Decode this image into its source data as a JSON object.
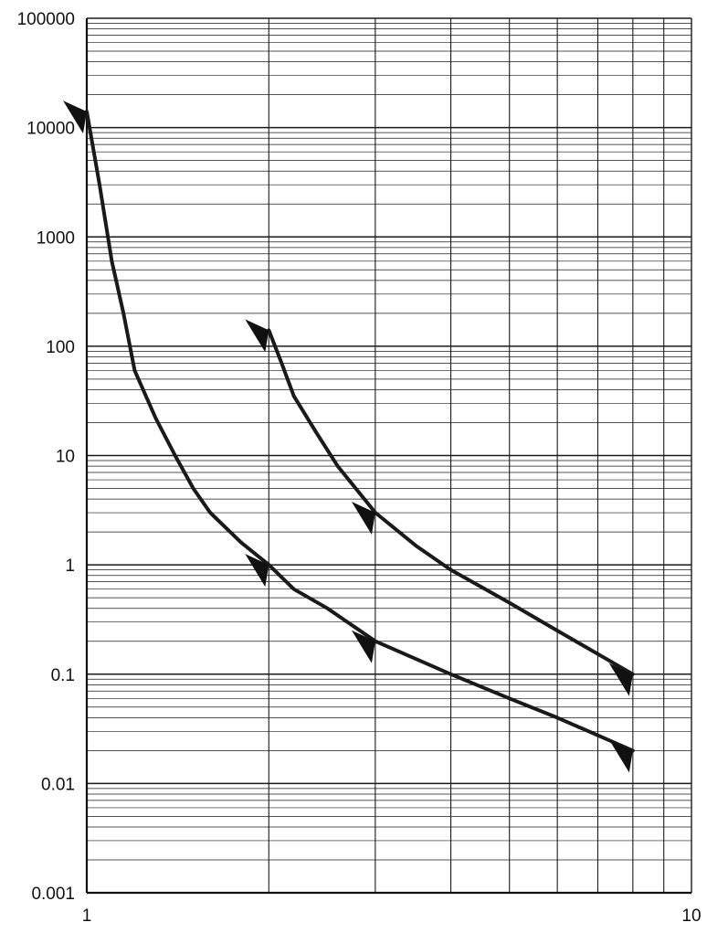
{
  "chart_data": {
    "type": "line",
    "title": "",
    "xlabel": "",
    "ylabel": "",
    "x_scale": "log",
    "y_scale": "log",
    "xlim": [
      1,
      10
    ],
    "ylim": [
      0.001,
      100000
    ],
    "grid": true,
    "x_tick_labels": [
      {
        "value": 1,
        "label": "1"
      },
      {
        "value": 10,
        "label": "10"
      }
    ],
    "y_tick_labels": [
      {
        "value": 100000,
        "label": "100000"
      },
      {
        "value": 10000,
        "label": "10000"
      },
      {
        "value": 1000,
        "label": "1000"
      },
      {
        "value": 100,
        "label": "100"
      },
      {
        "value": 10,
        "label": "10"
      },
      {
        "value": 1,
        "label": "1"
      },
      {
        "value": 0.1,
        "label": "0.1"
      },
      {
        "value": 0.01,
        "label": "0.01"
      },
      {
        "value": 0.001,
        "label": "0.001"
      }
    ],
    "series": [
      {
        "color": "#1a1a1a",
        "points": [
          [
            1.0,
            14000
          ],
          [
            1.05,
            3000
          ],
          [
            1.1,
            600
          ],
          [
            1.15,
            200
          ],
          [
            1.2,
            60
          ],
          [
            1.3,
            22
          ],
          [
            1.4,
            10
          ],
          [
            1.5,
            5
          ],
          [
            1.6,
            3
          ],
          [
            1.8,
            1.6
          ],
          [
            2.0,
            1.0
          ],
          [
            2.2,
            0.6
          ],
          [
            2.5,
            0.4
          ],
          [
            3.0,
            0.2
          ],
          [
            4.0,
            0.1
          ],
          [
            5.0,
            0.06
          ],
          [
            6.0,
            0.04
          ],
          [
            8.0,
            0.02
          ]
        ],
        "markers": [
          {
            "x": 1.0,
            "y": 14000
          },
          {
            "x": 2.0,
            "y": 1.0
          },
          {
            "x": 3.0,
            "y": 0.2
          },
          {
            "x": 8.0,
            "y": 0.02
          }
        ]
      },
      {
        "color": "#1a1a1a",
        "points": [
          [
            2.0,
            140
          ],
          [
            2.1,
            70
          ],
          [
            2.2,
            35
          ],
          [
            2.4,
            16
          ],
          [
            2.6,
            8
          ],
          [
            3.0,
            3
          ],
          [
            3.5,
            1.5
          ],
          [
            4.0,
            0.9
          ],
          [
            5.0,
            0.45
          ],
          [
            6.0,
            0.25
          ],
          [
            8.0,
            0.1
          ]
        ],
        "markers": [
          {
            "x": 2.0,
            "y": 140
          },
          {
            "x": 3.0,
            "y": 3
          },
          {
            "x": 8.0,
            "y": 0.1
          }
        ]
      }
    ]
  }
}
